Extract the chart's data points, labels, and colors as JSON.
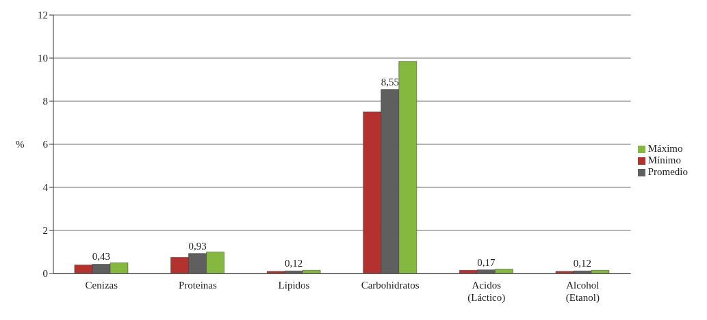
{
  "chart_data": {
    "type": "bar",
    "ylabel": "%",
    "categories": [
      "Cenizas",
      "Proteinas",
      "Lípidos",
      "Carbohidratos",
      "Acidos\n(Láctico)",
      "Alcohol\n(Etanol)"
    ],
    "series": [
      {
        "name": "Mínimo",
        "color": "#b3312f",
        "values": [
          0.4,
          0.75,
          0.1,
          7.5,
          0.15,
          0.1
        ]
      },
      {
        "name": "Promedio",
        "color": "#5f5f5f",
        "values": [
          0.43,
          0.93,
          0.12,
          8.55,
          0.17,
          0.12
        ],
        "value_labels": [
          "0,43",
          "0,93",
          "0,12",
          "8,55",
          "0,17",
          "0,12"
        ]
      },
      {
        "name": "Máximo",
        "color": "#84b83e",
        "values": [
          0.5,
          1.0,
          0.15,
          9.85,
          0.2,
          0.15
        ]
      }
    ],
    "ylim": [
      0,
      12
    ],
    "yticks": [
      0,
      2,
      4,
      6,
      8,
      10,
      12
    ],
    "grid": "y",
    "legend": "right"
  }
}
